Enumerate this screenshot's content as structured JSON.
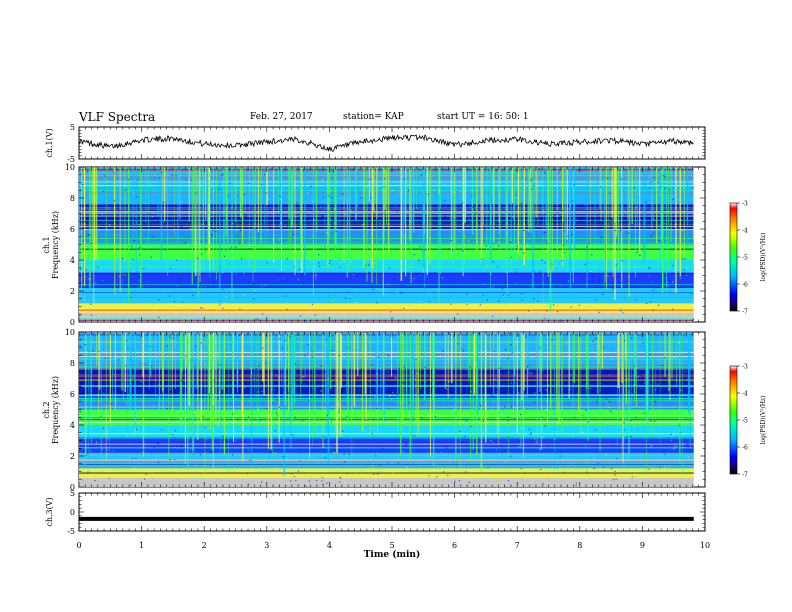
{
  "header": {
    "title": "VLF Spectra",
    "date": "Feb. 27, 2017",
    "station": "station= KAP",
    "start": "start  UT =   16: 50: 1"
  },
  "chart_data": [
    {
      "type": "line",
      "panel": "ch1-waveform",
      "ylabel": "ch.1(V)",
      "ylim": [
        -5,
        5
      ],
      "yticks": [
        5,
        -5
      ],
      "xlim": [
        0,
        10
      ],
      "x_extent": [
        0,
        9.82
      ],
      "x": [
        0,
        0.5,
        1,
        1.5,
        2,
        2.5,
        3,
        3.5,
        4,
        4.5,
        5,
        5.5,
        6,
        6.5,
        7,
        7.5,
        8,
        8.5,
        9,
        9.5,
        9.82
      ],
      "values": [
        0.6,
        -1.2,
        0.9,
        1.5,
        -0.3,
        -0.8,
        0.4,
        1.1,
        -2.0,
        0.2,
        1.6,
        1.8,
        -0.6,
        0.7,
        1.2,
        -0.4,
        0.3,
        0.9,
        -0.5,
        0.6,
        0.0
      ]
    },
    {
      "type": "heatmap",
      "panel": "ch1-spectrogram",
      "ylabel": "ch.1\nFrequency (kHz)",
      "ylim": [
        0,
        10
      ],
      "yticks": [
        0,
        2,
        4,
        6,
        8,
        10
      ],
      "xlim": [
        0,
        10
      ],
      "x_extent": [
        0,
        9.82
      ],
      "colorbar": {
        "label": "log(PSD)(V²/Hz)",
        "range": [
          -7,
          -3
        ],
        "ticks": [
          -3,
          -4,
          -5,
          -6,
          -7
        ]
      }
    },
    {
      "type": "heatmap",
      "panel": "ch2-spectrogram",
      "ylabel": "ch.2\nFrequency (kHz)",
      "ylim": [
        0,
        10
      ],
      "yticks": [
        0,
        2,
        4,
        6,
        8,
        10
      ],
      "xlim": [
        0,
        10
      ],
      "x_extent": [
        0,
        9.82
      ],
      "colorbar": {
        "label": "log(PSD)(V²/Hz)",
        "range": [
          -7,
          -3
        ],
        "ticks": [
          -3,
          -4,
          -5,
          -6,
          -7
        ]
      }
    },
    {
      "type": "line",
      "panel": "ch3-waveform",
      "ylabel": "ch.3(V)",
      "ylim": [
        -5,
        5
      ],
      "yticks": [
        5,
        0,
        -5
      ],
      "xlim": [
        0,
        10
      ],
      "x_extent": [
        0,
        9.82
      ],
      "x": [
        0,
        9.82
      ],
      "values": [
        -1.8,
        -1.8
      ]
    }
  ],
  "xaxis": {
    "label": "Time (min)",
    "ticks": [
      0,
      1,
      2,
      3,
      4,
      5,
      6,
      7,
      8,
      9,
      10
    ]
  }
}
